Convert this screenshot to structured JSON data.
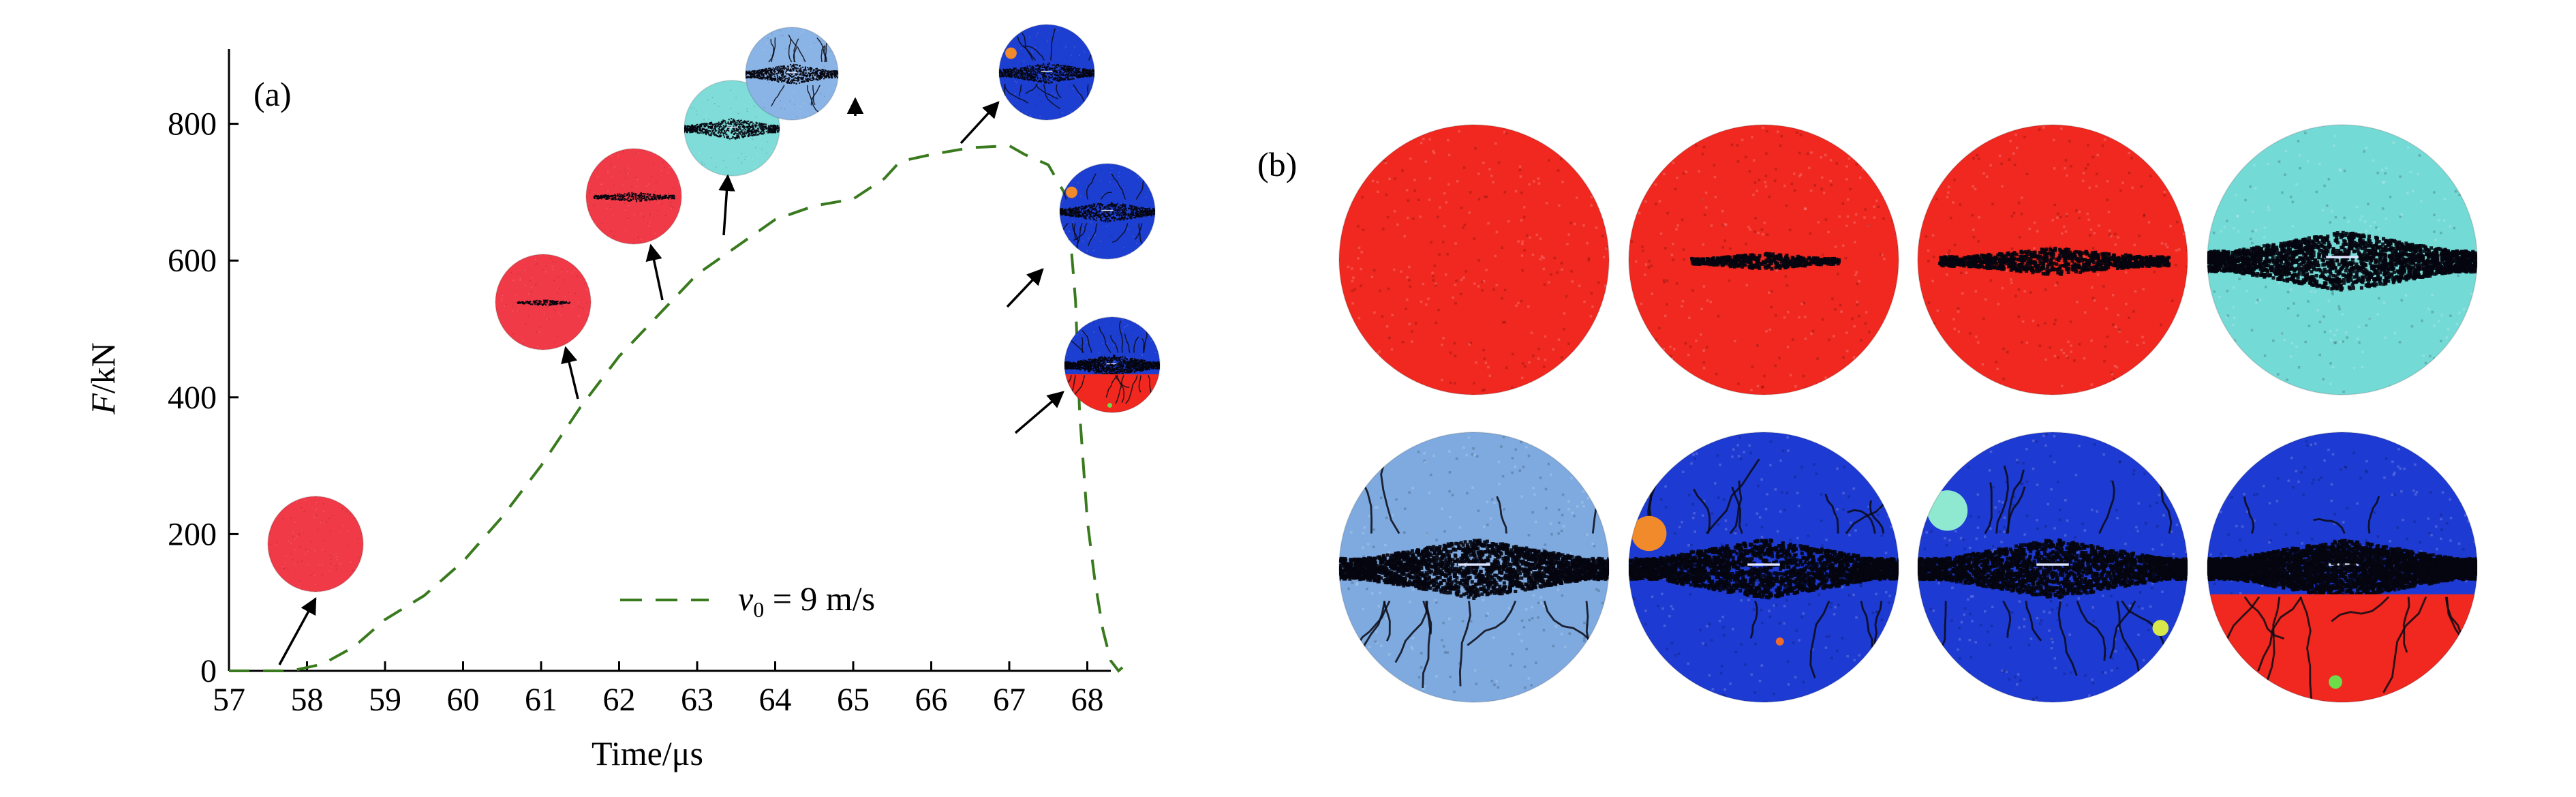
{
  "panel_a": {
    "label": "(a)",
    "legend": {
      "symbol": "v",
      "subscript": "0",
      "text": " = 9 m/s"
    }
  },
  "panel_b": {
    "label": "(b)"
  },
  "chart_data": {
    "type": "line",
    "title": "",
    "xlabel": "Time/μs",
    "ylabel_italic": "F",
    "ylabel_rest": "/kN",
    "xlim": [
      57,
      68.5
    ],
    "ylim": [
      0,
      900
    ],
    "xticks": [
      57,
      58,
      59,
      60,
      61,
      62,
      63,
      64,
      65,
      66,
      67,
      68
    ],
    "yticks": [
      0,
      200,
      400,
      600,
      800
    ],
    "grid": false,
    "legend_position": "bottom-right",
    "series": [
      {
        "name": "v0 = 9 m/s",
        "color": "#3a7a1e",
        "style": "dashed",
        "x": [
          57,
          57.8,
          58.2,
          58.6,
          59,
          59.5,
          60,
          60.5,
          61,
          61.5,
          62,
          62.5,
          63,
          63.5,
          64,
          64.5,
          65,
          65.4,
          65.6,
          66,
          66.5,
          67,
          67.2,
          67.5,
          67.7,
          67.8,
          67.85,
          67.9,
          68.0,
          68.1,
          68.2,
          68.3,
          68.4,
          68.45
        ],
        "y": [
          0,
          0,
          10,
          35,
          75,
          110,
          160,
          225,
          300,
          385,
          460,
          520,
          580,
          620,
          660,
          680,
          690,
          720,
          745,
          755,
          765,
          768,
          755,
          740,
          700,
          610,
          540,
          380,
          220,
          130,
          60,
          15,
          0,
          5
        ]
      }
    ],
    "annotations": [
      {
        "color": "#f03a47",
        "state": "intact",
        "x": 58.2,
        "y": 185
      },
      {
        "color": "#f03a47",
        "state": "small-crack",
        "x": 61.4,
        "y": 540
      },
      {
        "color": "#f03a47",
        "state": "crack",
        "x": 62.6,
        "y": 690
      },
      {
        "color": "#7fdcd8",
        "state": "damaged",
        "x": 64.0,
        "y": 795
      },
      {
        "color": "#8ab4e6",
        "state": "damaged",
        "x": 65.5,
        "y": 875
      },
      {
        "color": "#1d3fd1",
        "state": "damaged",
        "x": 68.1,
        "y": 885
      },
      {
        "color": "#1d3fd1",
        "state": "damaged",
        "x": 68.0,
        "y": 655
      },
      {
        "color": "#1d3fd1",
        "state": "split-red",
        "x": 68.0,
        "y": 450
      }
    ]
  },
  "panel_b_discs": [
    {
      "color": "#f0281f",
      "state": "intact"
    },
    {
      "color": "#f0281f",
      "state": "small-crack"
    },
    {
      "color": "#f0281f",
      "state": "crack"
    },
    {
      "color": "#74dad6",
      "state": "damaged"
    },
    {
      "color": "#7eaae0",
      "state": "damaged"
    },
    {
      "color": "#1d3ad2",
      "state": "damaged-orange"
    },
    {
      "color": "#1d3ad2",
      "state": "damaged-teal"
    },
    {
      "color": "#1d3ad2",
      "state": "split-red"
    }
  ]
}
